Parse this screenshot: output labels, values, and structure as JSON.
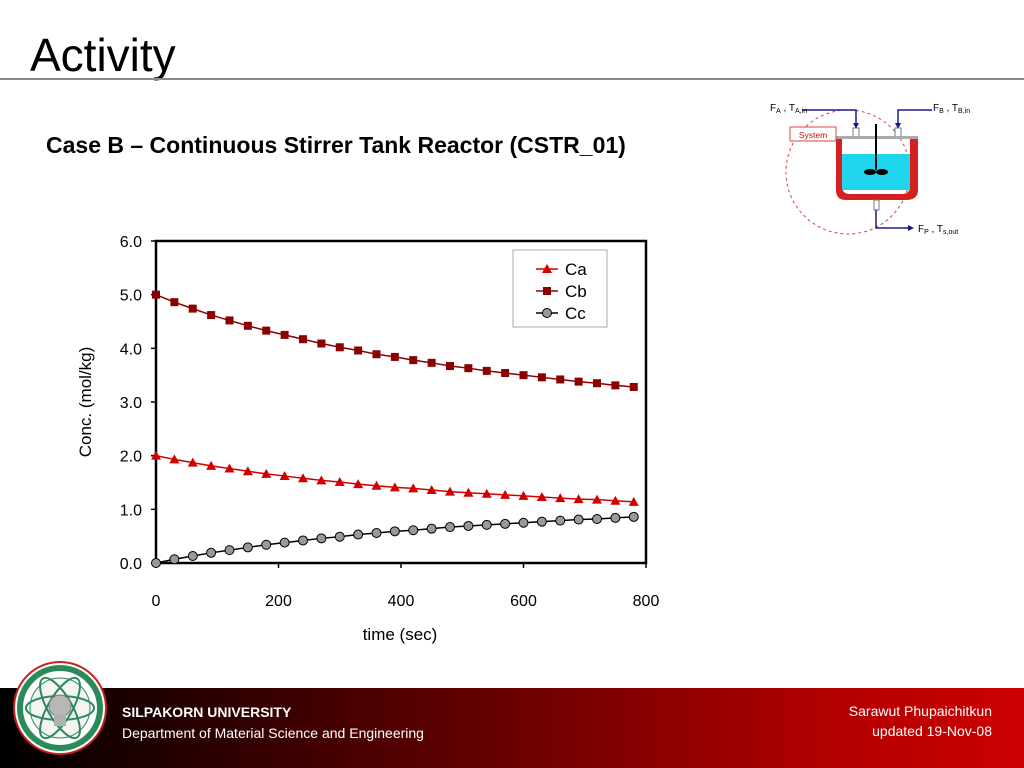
{
  "slide": {
    "title": "Activity",
    "subtitle": "Case B – Continuous Stirrer Tank Reactor (CSTR_01)"
  },
  "diagram": {
    "inlet_a_main": "F",
    "inlet_a_sub": "A",
    "inlet_a_t": " , T",
    "inlet_a_tsub": "A,in",
    "inlet_b_main": "F",
    "inlet_b_sub": "B",
    "inlet_b_t": " , T",
    "inlet_b_tsub": "B,in",
    "outlet_main": "F",
    "outlet_sub": "P",
    "outlet_t": " , T",
    "outlet_tsub": "s,out",
    "system_label": "System",
    "colors": {
      "boundary": "#d64545",
      "liquid": "#1fd6ec",
      "vessel": "#d62020",
      "stream": "#1a1a8c"
    }
  },
  "chart_data": {
    "type": "line",
    "x": [
      0,
      30,
      60,
      90,
      120,
      150,
      180,
      210,
      240,
      270,
      300,
      330,
      360,
      390,
      420,
      450,
      480,
      510,
      540,
      570,
      600,
      630,
      660,
      690,
      720,
      750,
      780
    ],
    "series": [
      {
        "name": "Ca",
        "color": "#d40000",
        "marker": "triangle",
        "values": [
          2.0,
          1.93,
          1.87,
          1.81,
          1.76,
          1.71,
          1.66,
          1.62,
          1.58,
          1.54,
          1.51,
          1.47,
          1.44,
          1.41,
          1.39,
          1.36,
          1.33,
          1.31,
          1.29,
          1.27,
          1.25,
          1.23,
          1.21,
          1.19,
          1.18,
          1.16,
          1.14
        ]
      },
      {
        "name": "Cb",
        "color": "#8b0000",
        "marker": "square",
        "values": [
          5.0,
          4.86,
          4.74,
          4.62,
          4.52,
          4.42,
          4.33,
          4.25,
          4.17,
          4.09,
          4.02,
          3.96,
          3.89,
          3.84,
          3.78,
          3.73,
          3.67,
          3.63,
          3.58,
          3.54,
          3.5,
          3.46,
          3.42,
          3.38,
          3.35,
          3.31,
          3.28
        ]
      },
      {
        "name": "Cc",
        "color": "#000000",
        "marker": "circle",
        "fill": "#999999",
        "values": [
          0.0,
          0.07,
          0.13,
          0.19,
          0.24,
          0.29,
          0.34,
          0.38,
          0.42,
          0.46,
          0.49,
          0.53,
          0.56,
          0.59,
          0.61,
          0.64,
          0.67,
          0.69,
          0.71,
          0.73,
          0.75,
          0.77,
          0.79,
          0.81,
          0.82,
          0.84,
          0.86
        ]
      }
    ],
    "xlabel": "time (sec)",
    "ylabel": "Conc. (mol/kg)",
    "xlim": [
      0,
      800
    ],
    "ylim": [
      0,
      6
    ],
    "xticks": [
      0,
      200,
      400,
      600,
      800
    ],
    "yticks": [
      "0.0",
      "1.0",
      "2.0",
      "3.0",
      "4.0",
      "5.0",
      "6.0"
    ],
    "grid": false,
    "legend": "top-right"
  },
  "footer": {
    "university": "SILPAKORN UNIVERSITY",
    "department": "Department of Material Science and Engineering",
    "author": "Sarawut Phupaichitkun",
    "updated": "updated  19-Nov-08"
  }
}
